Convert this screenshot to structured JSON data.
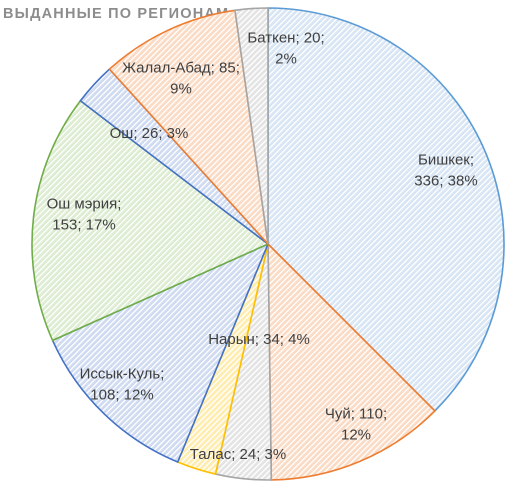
{
  "chart_data": {
    "type": "pie",
    "title": "ВЫДАННЫЕ ПО РЕГИОНАМ",
    "slices": [
      {
        "name": "Бишкек",
        "value": 336,
        "percent": "38%",
        "color": "#5b9bd5",
        "fill": "#dfe9f5",
        "label_lines": [
          "Бишкек;",
          "336; 38%"
        ]
      },
      {
        "name": "Чуй",
        "value": 110,
        "percent": "12%",
        "color": "#ed7d31",
        "fill": "#fae1cf",
        "label_lines": [
          "Чуй; 110;",
          "12%"
        ]
      },
      {
        "name": "Баткен",
        "value": 20,
        "percent": "2%",
        "color": "#a5a5a5",
        "fill": "#e6e6e6",
        "label_lines": [
          "Баткен; 20;",
          "2%"
        ]
      },
      {
        "name": "Талас",
        "value": 24,
        "percent": "3%",
        "color": "#ffc000",
        "fill": "#ffeeb0",
        "label_lines": [
          "Талас; 24; 3%"
        ]
      },
      {
        "name": "Иссык-Куль",
        "value": 108,
        "percent": "12%",
        "color": "#4472c4",
        "fill": "#d6e0f3",
        "label_lines": [
          "Иссык-Куль;",
          "108; 12%"
        ]
      },
      {
        "name": "Нарын",
        "value": 34,
        "percent": "4%",
        "color": "#70ad47",
        "fill": "#e3efd9",
        "label_lines": [
          "Нарын; 34; 4%"
        ]
      },
      {
        "name": "Ош мэрия",
        "value": 153,
        "percent": "17%",
        "color": "#70ad47",
        "fill": "#e3efd9",
        "label_lines": [
          "Ош мэрия;",
          "153; 17%"
        ]
      },
      {
        "name": "Ош",
        "value": 26,
        "percent": "3%",
        "color": "#4472c4",
        "fill": "#d6e0f3",
        "label_lines": [
          "Ош; 26; 3%"
        ]
      },
      {
        "name": "Жалал-Абад",
        "value": 85,
        "percent": "9%",
        "color": "#ed7d31",
        "fill": "#fae1cf",
        "label_lines": [
          "Жалал-Абад; 85;",
          "9%"
        ]
      }
    ]
  }
}
